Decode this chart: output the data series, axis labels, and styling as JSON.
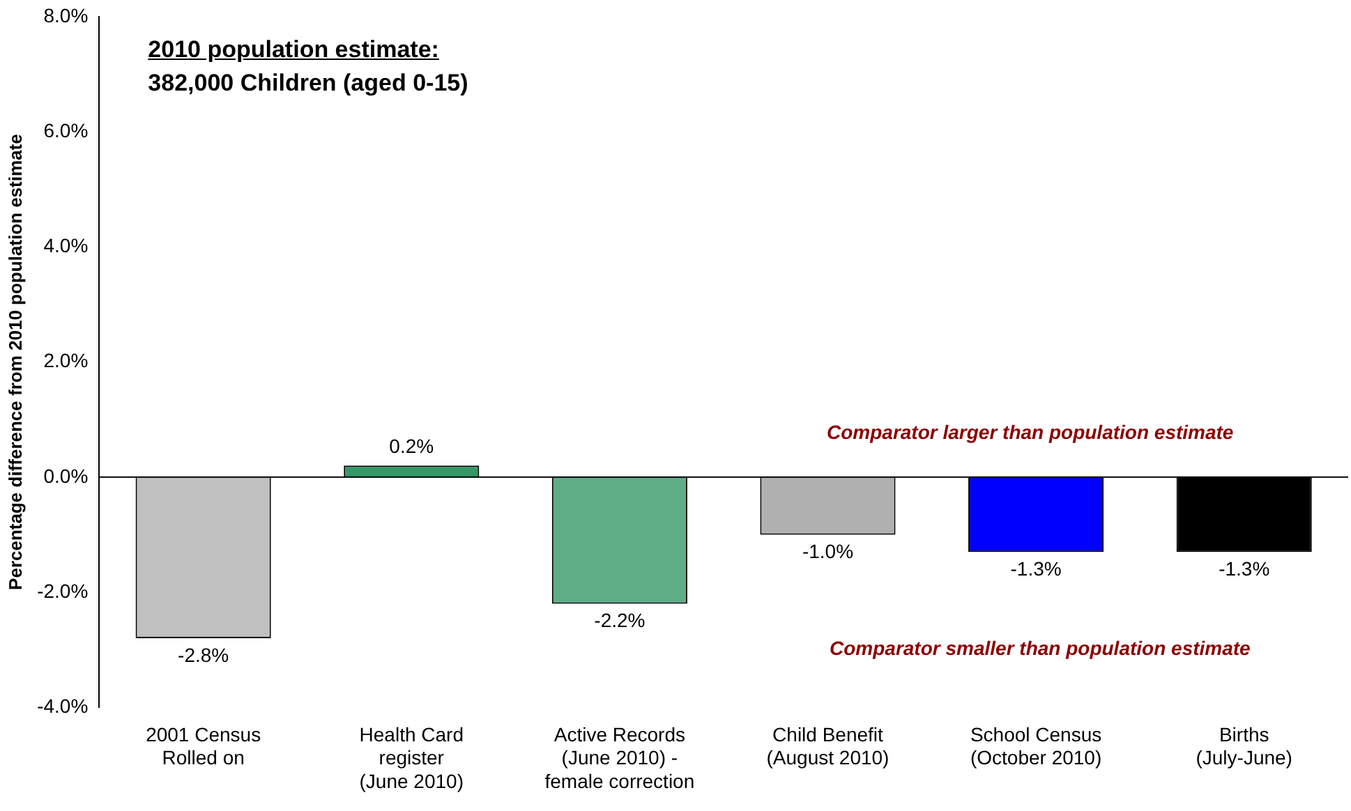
{
  "chart_data": {
    "type": "bar",
    "title": "2010 population estimate:",
    "subtitle": "382,000 Children (aged 0-15)",
    "ylabel": "Percentage difference from 2010 population estimate",
    "categories": [
      "2001 Census\nRolled on",
      "Health Card\nregister\n(June 2010)",
      "Active Records\n(June 2010) -\nfemale correction",
      "Child Benefit\n(August 2010)",
      "School Census\n(October 2010)",
      "Births\n(July-June)"
    ],
    "values": [
      -2.8,
      0.2,
      -2.2,
      -1.0,
      -1.3,
      -1.3
    ],
    "value_labels": [
      "-2.8%",
      "0.2%",
      "-2.2%",
      "-1.0%",
      "-1.3%",
      "-1.3%"
    ],
    "colors": [
      "#c0c0c0",
      "#339966",
      "#5fae88",
      "#b0b0b0",
      "#0000ff",
      "#000000"
    ],
    "ylim": [
      -4,
      8
    ],
    "yticks": [
      {
        "value": -4,
        "label": "-4.0%"
      },
      {
        "value": -2,
        "label": "-2.0%"
      },
      {
        "value": 0,
        "label": "0.0%"
      },
      {
        "value": 2,
        "label": "2.0%"
      },
      {
        "value": 4,
        "label": "4.0%"
      },
      {
        "value": 6,
        "label": "6.0%"
      },
      {
        "value": 8,
        "label": "8.0%"
      }
    ],
    "ref_lines": [
      {
        "axis": "y",
        "value": 0,
        "color": "#000000"
      }
    ],
    "annotations": [
      "Comparator larger than population estimate",
      "Comparator smaller than population estimate"
    ],
    "grid": false,
    "legend": false
  }
}
